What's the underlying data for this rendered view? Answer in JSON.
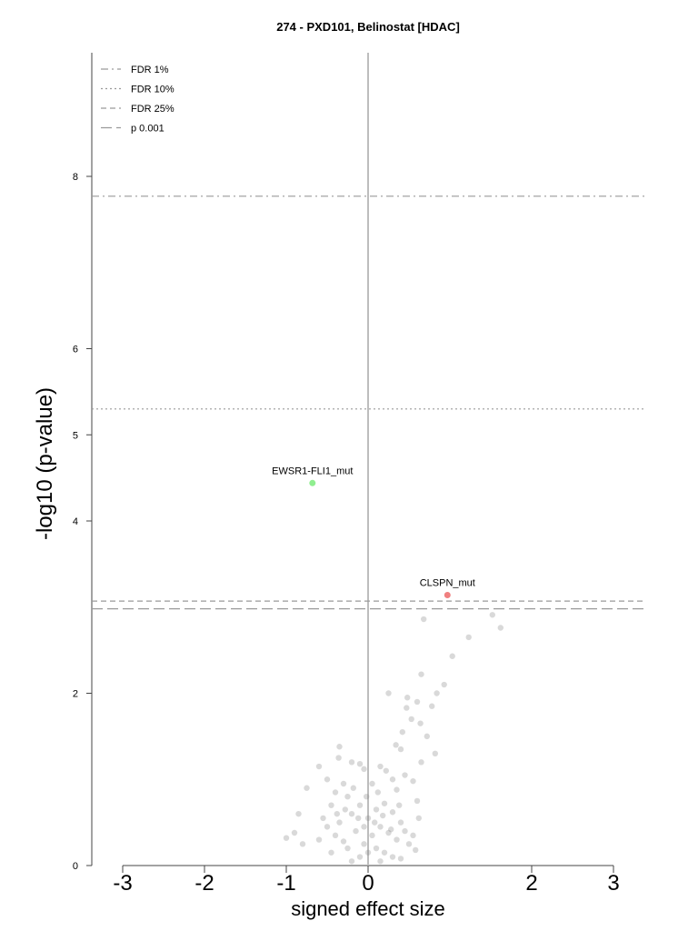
{
  "chart_data": {
    "type": "scatter",
    "title": "274 - PXD101, Belinostat [HDAC]",
    "xlabel": "signed effect size",
    "ylabel": "-log10 (p-value)",
    "xlim": [
      -3,
      3
    ],
    "ylim": [
      0,
      9.5
    ],
    "x_ticks": [
      "-3",
      "-2",
      "-1",
      "0",
      "2",
      "3"
    ],
    "x_tick_values": [
      -3,
      -2,
      -1,
      0,
      2,
      3
    ],
    "y_ticks": [
      "0",
      "2",
      "4",
      "5",
      "6",
      "8"
    ],
    "y_tick_values": [
      0,
      2,
      4,
      5,
      6,
      8
    ],
    "vertical_reference_line": 0,
    "grid": false,
    "legend_position": "top-left",
    "thresholds": [
      {
        "label": "FDR 1%",
        "y": 7.77,
        "style": "dashdot",
        "color": "#9a9a9a"
      },
      {
        "label": "FDR 10%",
        "y": 5.3,
        "style": "dotted",
        "color": "#9a9a9a"
      },
      {
        "label": "FDR 25%",
        "y": 3.07,
        "style": "dashed",
        "color": "#9a9a9a"
      },
      {
        "label": "p 0.001",
        "y": 2.98,
        "style": "longdash",
        "color": "#9a9a9a"
      }
    ],
    "highlighted": [
      {
        "label": "EWSR1-FLI1_mut",
        "x": -0.68,
        "y": 4.44,
        "color": "#90ee90"
      },
      {
        "label": "CLSPN_mut",
        "x": 0.97,
        "y": 3.14,
        "color": "#f08080"
      }
    ],
    "points_color": "#808080",
    "points": [
      [
        0.68,
        2.86
      ],
      [
        1.23,
        2.65
      ],
      [
        1.52,
        2.91
      ],
      [
        1.62,
        2.76
      ],
      [
        1.03,
        2.43
      ],
      [
        0.65,
        2.22
      ],
      [
        0.93,
        2.1
      ],
      [
        0.84,
        2.0
      ],
      [
        0.25,
        2.0
      ],
      [
        0.48,
        1.95
      ],
      [
        0.47,
        1.83
      ],
      [
        0.6,
        1.9
      ],
      [
        0.78,
        1.85
      ],
      [
        0.53,
        1.7
      ],
      [
        0.64,
        1.65
      ],
      [
        0.42,
        1.55
      ],
      [
        0.4,
        1.35
      ],
      [
        0.34,
        1.4
      ],
      [
        0.72,
        1.5
      ],
      [
        0.82,
        1.3
      ],
      [
        0.65,
        1.2
      ],
      [
        -0.2,
        1.2
      ],
      [
        -0.35,
        1.38
      ],
      [
        -0.36,
        1.25
      ],
      [
        -0.1,
        1.18
      ],
      [
        -0.6,
        1.15
      ],
      [
        0.22,
        1.1
      ],
      [
        0.3,
        1.0
      ],
      [
        0.45,
        1.05
      ],
      [
        0.55,
        0.98
      ],
      [
        -0.5,
        1.0
      ],
      [
        -0.75,
        0.9
      ],
      [
        -0.05,
        1.12
      ],
      [
        0.15,
        1.15
      ],
      [
        -0.3,
        0.95
      ],
      [
        -0.85,
        0.6
      ],
      [
        -0.9,
        0.38
      ],
      [
        -0.8,
        0.25
      ],
      [
        -1.0,
        0.32
      ],
      [
        -0.55,
        0.55
      ],
      [
        -0.45,
        0.7
      ],
      [
        -0.4,
        0.85
      ],
      [
        -0.25,
        0.8
      ],
      [
        -0.18,
        0.9
      ],
      [
        0.05,
        0.95
      ],
      [
        0.35,
        0.88
      ],
      [
        0.6,
        0.75
      ],
      [
        0.62,
        0.55
      ],
      [
        0.55,
        0.35
      ],
      [
        0.58,
        0.18
      ],
      [
        -0.6,
        0.3
      ],
      [
        -0.5,
        0.45
      ],
      [
        -0.35,
        0.5
      ],
      [
        -0.2,
        0.6
      ],
      [
        -0.1,
        0.7
      ],
      [
        0.0,
        0.55
      ],
      [
        0.1,
        0.65
      ],
      [
        0.2,
        0.72
      ],
      [
        0.3,
        0.62
      ],
      [
        0.4,
        0.5
      ],
      [
        0.45,
        0.4
      ],
      [
        0.5,
        0.25
      ],
      [
        -0.4,
        0.35
      ],
      [
        -0.3,
        0.28
      ],
      [
        -0.15,
        0.4
      ],
      [
        0.05,
        0.35
      ],
      [
        0.15,
        0.45
      ],
      [
        0.25,
        0.38
      ],
      [
        0.35,
        0.3
      ],
      [
        -0.05,
        0.25
      ],
      [
        -0.25,
        0.2
      ],
      [
        -0.45,
        0.15
      ],
      [
        0.1,
        0.2
      ],
      [
        0.2,
        0.15
      ],
      [
        0.3,
        0.1
      ],
      [
        -0.1,
        0.1
      ],
      [
        0.0,
        0.15
      ],
      [
        -0.2,
        0.05
      ],
      [
        0.15,
        0.05
      ],
      [
        0.4,
        0.08
      ],
      [
        -0.05,
        0.45
      ],
      [
        0.08,
        0.5
      ],
      [
        -0.12,
        0.55
      ],
      [
        0.18,
        0.58
      ],
      [
        -0.28,
        0.65
      ],
      [
        0.28,
        0.42
      ],
      [
        -0.38,
        0.6
      ],
      [
        0.38,
        0.7
      ],
      [
        -0.02,
        0.8
      ],
      [
        0.12,
        0.85
      ]
    ]
  }
}
